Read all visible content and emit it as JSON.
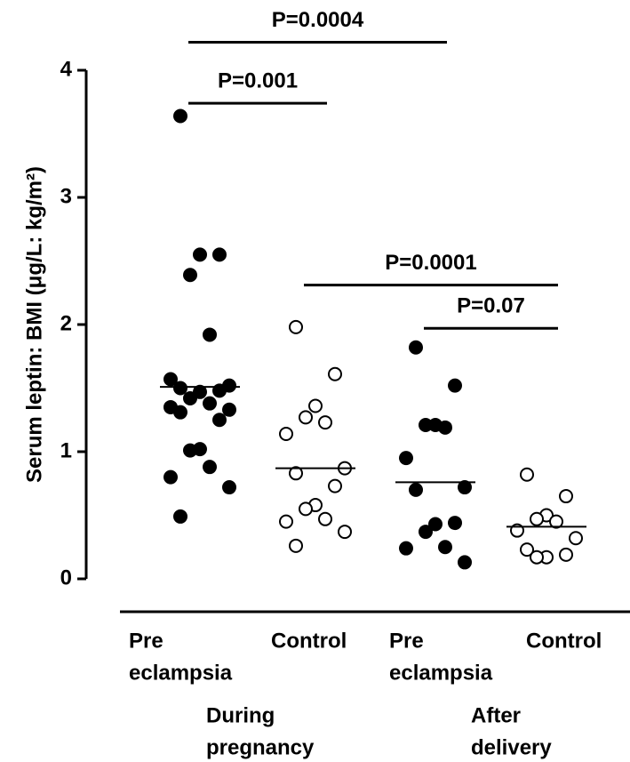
{
  "chart_data": {
    "type": "scatter",
    "y_label": "Serum leptin: BMI (μg/L: kg/m²)",
    "ylim": [
      0,
      4
    ],
    "yticks": [
      0,
      1,
      2,
      3,
      4
    ],
    "categories": [
      [
        "Pre",
        "eclampsia"
      ],
      [
        "Control"
      ],
      [
        "Pre",
        "eclampsia"
      ],
      [
        "Control"
      ]
    ],
    "groups": [
      {
        "label": [
          "During",
          "pregnancy"
        ]
      },
      {
        "label": [
          "After",
          "delivery"
        ]
      }
    ],
    "series": [
      {
        "filled": true,
        "mean": 1.51,
        "values": [
          3.64,
          2.55,
          2.55,
          2.39,
          1.92,
          1.57,
          1.52,
          1.5,
          1.48,
          1.47,
          1.42,
          1.38,
          1.35,
          1.33,
          1.31,
          1.25,
          1.02,
          1.01,
          0.88,
          0.8,
          0.72,
          0.49
        ]
      },
      {
        "filled": false,
        "mean": 0.87,
        "values": [
          1.98,
          1.61,
          1.36,
          1.27,
          1.23,
          1.14,
          0.87,
          0.83,
          0.73,
          0.58,
          0.55,
          0.47,
          0.45,
          0.37,
          0.26
        ]
      },
      {
        "filled": true,
        "mean": 0.76,
        "values": [
          1.82,
          1.52,
          1.21,
          1.21,
          1.19,
          0.95,
          0.72,
          0.7,
          0.44,
          0.43,
          0.37,
          0.25,
          0.24,
          0.13
        ]
      },
      {
        "filled": false,
        "mean": 0.41,
        "values": [
          0.82,
          0.65,
          0.5,
          0.47,
          0.45,
          0.38,
          0.32,
          0.23,
          0.19,
          0.17,
          0.17
        ]
      }
    ],
    "brackets": [
      {
        "label": "P=0.0004",
        "from": 0,
        "to": 2,
        "y": 4.22
      },
      {
        "label": "P=0.001",
        "from": 0,
        "to": 1,
        "y": 3.74
      },
      {
        "label": "P=0.0001",
        "from": 1,
        "to": 3,
        "y": 2.31
      },
      {
        "label": "P=0.07",
        "from": 2,
        "to": 3,
        "y": 1.97
      }
    ]
  }
}
